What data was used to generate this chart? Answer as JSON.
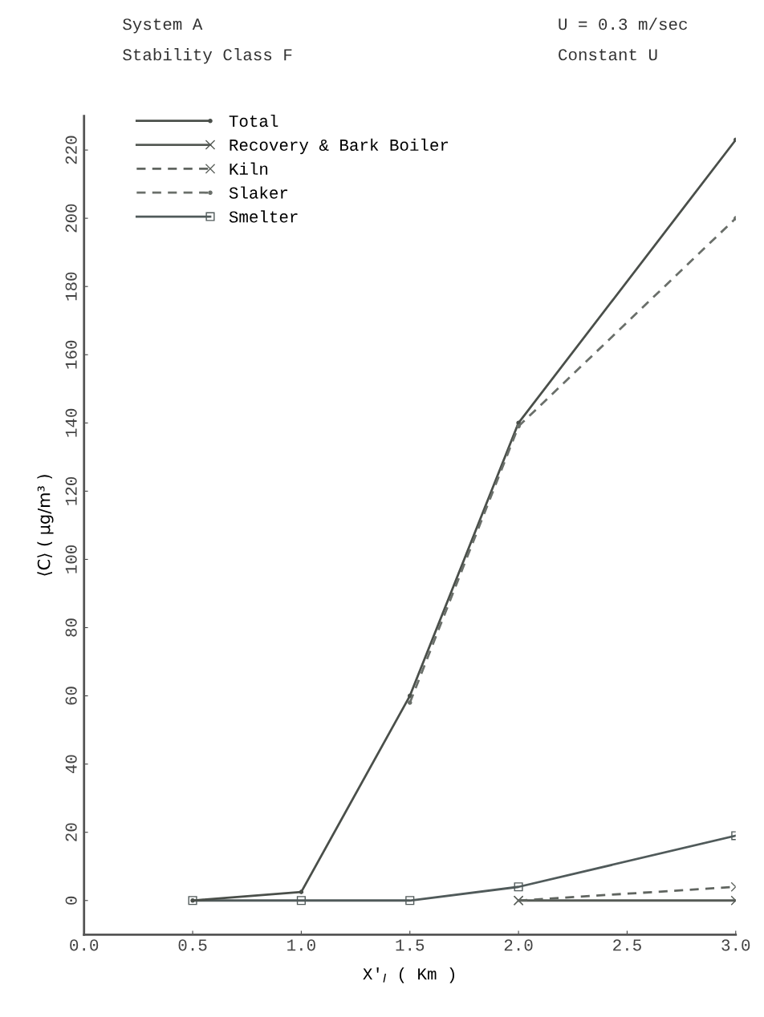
{
  "chart_data": {
    "type": "line",
    "annotations": [
      "System A",
      "Stability Class F",
      "U = 0.3 m/sec",
      "Constant U"
    ],
    "xlabel": "X'$_{I}$ ( Km )",
    "ylabel": "⟨C⟩ ( μg/m³ )",
    "x": [
      0.5,
      1.0,
      1.5,
      2.0,
      3.0
    ],
    "series": [
      {
        "name": "Total",
        "color": "#4a4f4a",
        "values": [
          0,
          2.5,
          60,
          140,
          223
        ],
        "marker": "circle",
        "line_style": "solid"
      },
      {
        "name": "Recovery & Bark Boiler",
        "color": "#555a55",
        "values": [
          null,
          null,
          null,
          0,
          0
        ],
        "marker": "cross",
        "line_style": "solid"
      },
      {
        "name": "Kiln",
        "color": "#606560",
        "values": [
          null,
          null,
          null,
          0,
          4
        ],
        "marker": "cross",
        "line_style": "dashed"
      },
      {
        "name": "Slaker",
        "color": "#6a6f6a",
        "values": [
          null,
          null,
          58,
          139,
          200
        ],
        "marker": "circle",
        "line_style": "dashed"
      },
      {
        "name": "Smelter",
        "color": "#505a5a",
        "values": [
          0,
          0,
          0,
          4,
          19
        ],
        "marker": "square",
        "line_style": "solid"
      }
    ],
    "xlim": [
      0,
      3.0
    ],
    "ylim": [
      -10,
      230
    ],
    "xticks": [
      {
        "value": 0,
        "label": "0.0"
      },
      0.5,
      {
        "value": 1,
        "label": "1.0"
      },
      1.5,
      {
        "value": 2,
        "label": "2.0"
      },
      2.5,
      {
        "value": 3,
        "label": "3.0"
      }
    ],
    "yticks": [
      0,
      20,
      40,
      60,
      80,
      100,
      120,
      140,
      160,
      180,
      200,
      220
    ],
    "legend": "top left",
    "grid": false
  }
}
